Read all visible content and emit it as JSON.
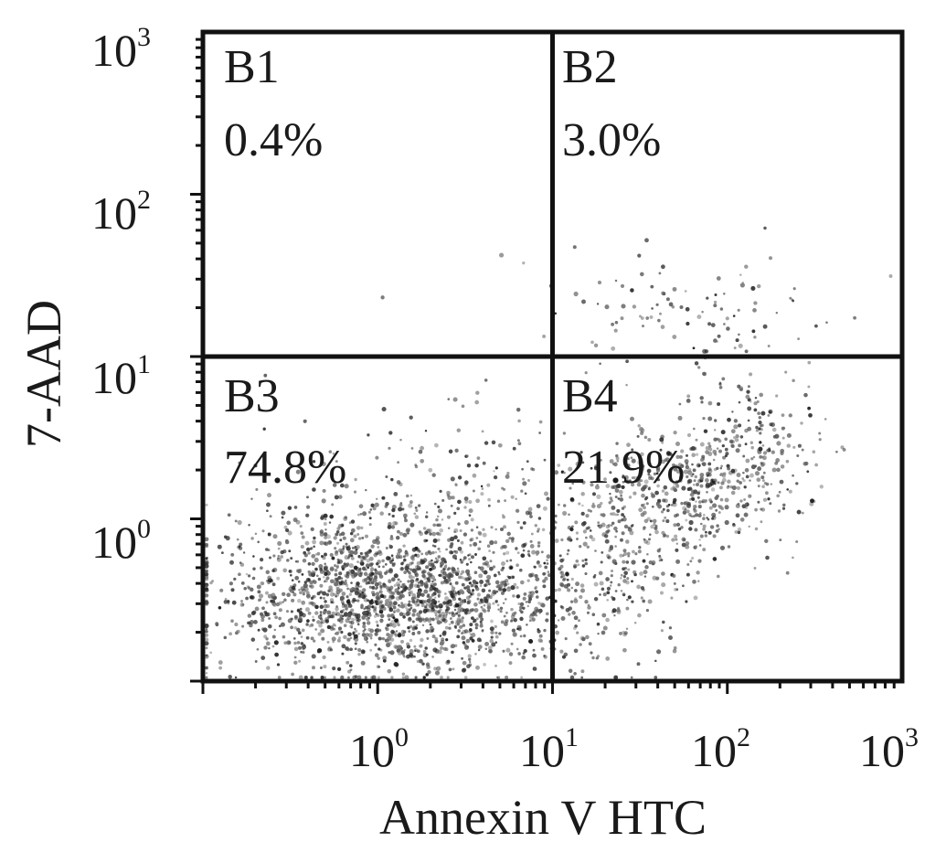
{
  "chart_data": {
    "type": "scatter",
    "subtype": "flow-cytometry-quadrant-dot-plot",
    "xlabel": "Annexin V HTC",
    "ylabel": "7-AAD",
    "x_scale": "log",
    "y_scale": "log",
    "xlim": [
      0.1,
      1000
    ],
    "ylim": [
      0.1,
      1000
    ],
    "x_ticks": [
      {
        "base": "10",
        "exp": "0",
        "value": 1
      },
      {
        "base": "10",
        "exp": "1",
        "value": 10
      },
      {
        "base": "10",
        "exp": "2",
        "value": 100
      },
      {
        "base": "10",
        "exp": "3",
        "value": 1000
      }
    ],
    "y_ticks": [
      {
        "base": "10",
        "exp": "0",
        "value": 1
      },
      {
        "base": "10",
        "exp": "1",
        "value": 10
      },
      {
        "base": "10",
        "exp": "2",
        "value": 100
      },
      {
        "base": "10",
        "exp": "3",
        "value": 1000
      }
    ],
    "gate": {
      "x": 10,
      "y": 10
    },
    "quadrants": [
      {
        "name": "B1",
        "percent": "0.4%",
        "position": "top-left"
      },
      {
        "name": "B2",
        "percent": "3.0%",
        "position": "top-right"
      },
      {
        "name": "B3",
        "percent": "74.8%",
        "position": "bottom-left"
      },
      {
        "name": "B4",
        "percent": "21.9%",
        "position": "bottom-right"
      }
    ],
    "populations": [
      {
        "quadrant": "B3",
        "center": [
          0.8,
          0.35
        ],
        "spread_log": [
          0.45,
          0.25
        ],
        "count": 1300
      },
      {
        "quadrant": "B3",
        "center": [
          3.0,
          0.3
        ],
        "spread_log": [
          0.35,
          0.2
        ],
        "count": 550
      },
      {
        "quadrant": "B3",
        "center": [
          2.0,
          1.2
        ],
        "spread_log": [
          0.45,
          0.35
        ],
        "count": 220
      },
      {
        "quadrant": "B4",
        "center": [
          20,
          0.6
        ],
        "spread_log": [
          0.3,
          0.3
        ],
        "count": 420
      },
      {
        "quadrant": "B4",
        "center": [
          60,
          1.5
        ],
        "spread_log": [
          0.25,
          0.2
        ],
        "count": 380
      },
      {
        "quadrant": "B4",
        "center": [
          150,
          3.0
        ],
        "spread_log": [
          0.2,
          0.2
        ],
        "count": 160
      },
      {
        "quadrant": "B2",
        "center": [
          60,
          18
        ],
        "spread_log": [
          0.35,
          0.2
        ],
        "count": 110
      },
      {
        "quadrant": "B1",
        "center": [
          3.0,
          25
        ],
        "spread_log": [
          0.3,
          0.3
        ],
        "count": 3
      }
    ],
    "grid": false,
    "legend": "none"
  }
}
